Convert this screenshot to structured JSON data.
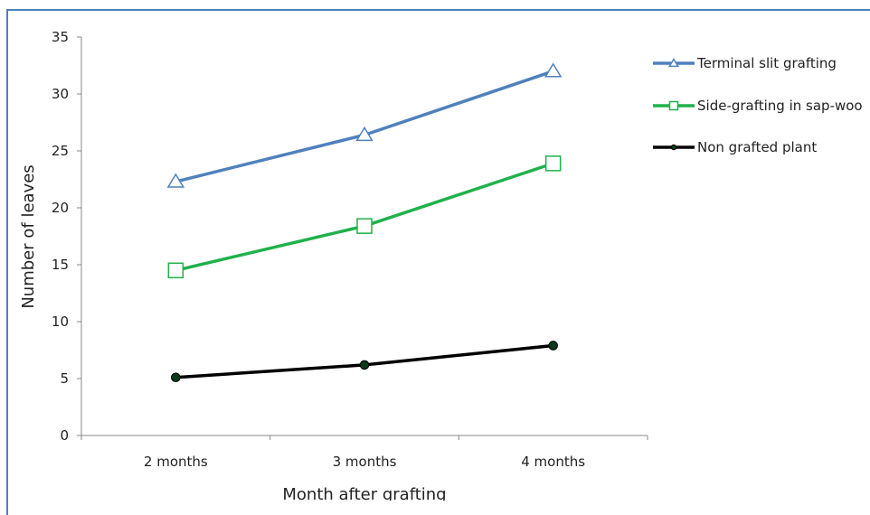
{
  "chart_data": {
    "type": "line",
    "title": "",
    "xlabel": "Month after grafting",
    "ylabel": "Number of leaves",
    "categories": [
      "2 months",
      "3 months",
      "4 months"
    ],
    "ylim": [
      0,
      35
    ],
    "yticks": [
      0,
      5,
      10,
      15,
      20,
      25,
      30,
      35
    ],
    "grid": false,
    "legend_position": "right",
    "series": [
      {
        "name": "Terminal slit grafting",
        "values": [
          22.3,
          26.4,
          32.0
        ],
        "color": "#4f81bd",
        "marker": "triangle-open"
      },
      {
        "name": "Side-grafting in sap-woo",
        "values": [
          14.5,
          18.4,
          23.9
        ],
        "color": "#1fb14b",
        "marker": "square-open"
      },
      {
        "name": "Non grafted plant",
        "values": [
          5.1,
          6.2,
          7.9
        ],
        "color": "#000000",
        "marker": "circle-filled"
      }
    ]
  }
}
